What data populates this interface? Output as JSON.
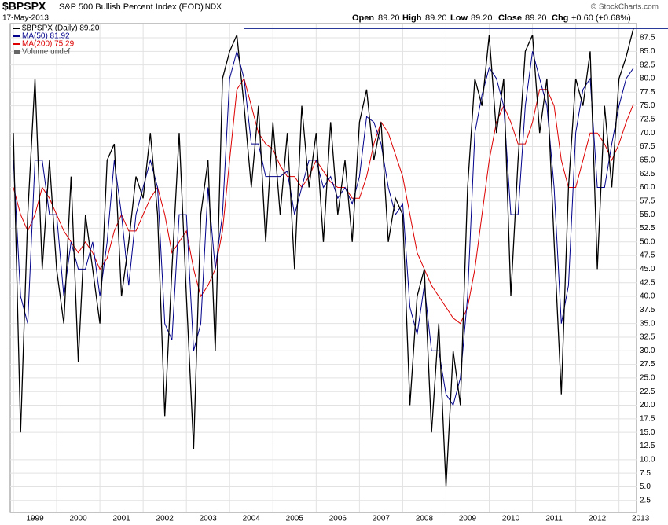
{
  "chart_data": {
    "type": "line",
    "symbol": "$BPSPX",
    "title": "S&P 500 Bullish Percent Index (EOD)",
    "exchange": "INDX",
    "date": "17-May-2013",
    "quote": {
      "open_label": "Open",
      "open": "89.20",
      "high_label": "High",
      "high": "89.20",
      "low_label": "Low",
      "low": "89.20",
      "close_label": "Close",
      "close": "89.20",
      "chg_label": "Chg",
      "chg": "+0.60 (+0.68%)"
    },
    "credit": "© StockCharts.com",
    "volume_legend": "Volume undef",
    "categories": [
      "1999",
      null,
      null,
      null,
      null,
      null,
      "2000",
      null,
      null,
      null,
      null,
      null,
      "2001",
      null,
      null,
      null,
      null,
      null,
      "2002",
      null,
      null,
      null,
      null,
      null,
      "2003",
      null,
      null,
      null,
      null,
      null,
      "2004",
      null,
      null,
      null,
      null,
      null,
      "2005",
      null,
      null,
      null,
      null,
      null,
      "2006",
      null,
      null,
      null,
      null,
      null,
      "2007",
      null,
      null,
      null,
      null,
      null,
      "2008",
      null,
      null,
      null,
      null,
      null,
      "2009",
      null,
      null,
      null,
      null,
      null,
      "2010",
      null,
      null,
      null,
      null,
      null,
      "2011",
      null,
      null,
      null,
      null,
      null,
      "2012",
      null,
      null,
      null,
      null,
      null,
      "2013",
      null,
      null
    ],
    "series": [
      {
        "name": "$BPSPX (Daily) 89.20",
        "color": "#000000",
        "values": [
          70,
          15,
          55,
          80,
          45,
          65,
          45,
          35,
          62,
          28,
          55,
          45,
          35,
          65,
          68,
          40,
          50,
          62,
          58,
          70,
          55,
          18,
          45,
          70,
          40,
          12,
          55,
          65,
          30,
          80,
          85,
          88,
          75,
          60,
          75,
          50,
          72,
          55,
          70,
          45,
          75,
          60,
          70,
          50,
          72,
          55,
          65,
          50,
          72,
          78,
          65,
          72,
          50,
          58,
          55,
          20,
          40,
          45,
          15,
          35,
          5,
          30,
          20,
          60,
          80,
          75,
          88,
          70,
          80,
          40,
          65,
          85,
          88,
          70,
          80,
          50,
          22,
          60,
          80,
          75,
          85,
          45,
          75,
          60,
          80,
          84,
          89.2
        ]
      },
      {
        "name": "MA(50) 81.92",
        "color": "#00008b",
        "values": [
          65,
          40,
          35,
          65,
          65,
          55,
          55,
          40,
          50,
          45,
          45,
          50,
          40,
          50,
          65,
          55,
          42,
          55,
          60,
          65,
          60,
          35,
          32,
          55,
          55,
          30,
          35,
          60,
          45,
          55,
          80,
          85,
          80,
          68,
          68,
          62,
          62,
          62,
          63,
          55,
          60,
          65,
          65,
          60,
          62,
          58,
          60,
          57,
          62,
          73,
          72,
          68,
          60,
          55,
          57,
          38,
          33,
          42,
          30,
          30,
          22,
          20,
          25,
          40,
          70,
          77,
          82,
          80,
          75,
          55,
          55,
          75,
          85,
          80,
          75,
          60,
          35,
          42,
          70,
          78,
          80,
          60,
          60,
          68,
          75,
          80,
          81.92
        ]
      },
      {
        "name": "MA(200) 75.29",
        "color": "#dd0000",
        "values": [
          60,
          55,
          52,
          55,
          60,
          58,
          55,
          52,
          50,
          48,
          50,
          48,
          45,
          47,
          52,
          55,
          52,
          52,
          55,
          58,
          60,
          55,
          48,
          50,
          52,
          45,
          40,
          42,
          45,
          52,
          65,
          78,
          80,
          75,
          70,
          68,
          67,
          64,
          62,
          62,
          60,
          62,
          65,
          63,
          61,
          60,
          60,
          58,
          58,
          62,
          68,
          72,
          70,
          66,
          62,
          55,
          48,
          45,
          42,
          40,
          38,
          36,
          35,
          38,
          45,
          55,
          65,
          72,
          75,
          72,
          68,
          68,
          72,
          78,
          78,
          75,
          65,
          60,
          60,
          65,
          70,
          70,
          68,
          65,
          68,
          72,
          75.29
        ]
      }
    ],
    "hline": 89.2,
    "hline_color": "#2a3a9a",
    "ylim": [
      0.3,
      90.1
    ],
    "yticks": [
      2.5,
      {
        "value": 5,
        "label": "5.0"
      },
      7.5,
      {
        "value": 10,
        "label": "10.0"
      },
      12.5,
      {
        "value": 15,
        "label": "15.0"
      },
      17.5,
      {
        "value": 20,
        "label": "20.0"
      },
      22.5,
      {
        "value": 25,
        "label": "25.0"
      },
      27.5,
      {
        "value": 30,
        "label": "30.0"
      },
      32.5,
      {
        "value": 35,
        "label": "35.0"
      },
      37.5,
      {
        "value": 40,
        "label": "40.0"
      },
      42.5,
      {
        "value": 45,
        "label": "45.0"
      },
      47.5,
      {
        "value": 50,
        "label": "50.0"
      },
      52.5,
      {
        "value": 55,
        "label": "55.0"
      },
      57.5,
      {
        "value": 60,
        "label": "60.0"
      },
      62.5,
      {
        "value": 65,
        "label": "65.0"
      },
      67.5,
      {
        "value": 70,
        "label": "70.0"
      },
      72.5,
      {
        "value": 75,
        "label": "75.0"
      },
      77.5,
      {
        "value": 80,
        "label": "80.0"
      },
      82.5,
      {
        "value": 85,
        "label": "85.0"
      },
      87.5
    ],
    "grid": true
  }
}
